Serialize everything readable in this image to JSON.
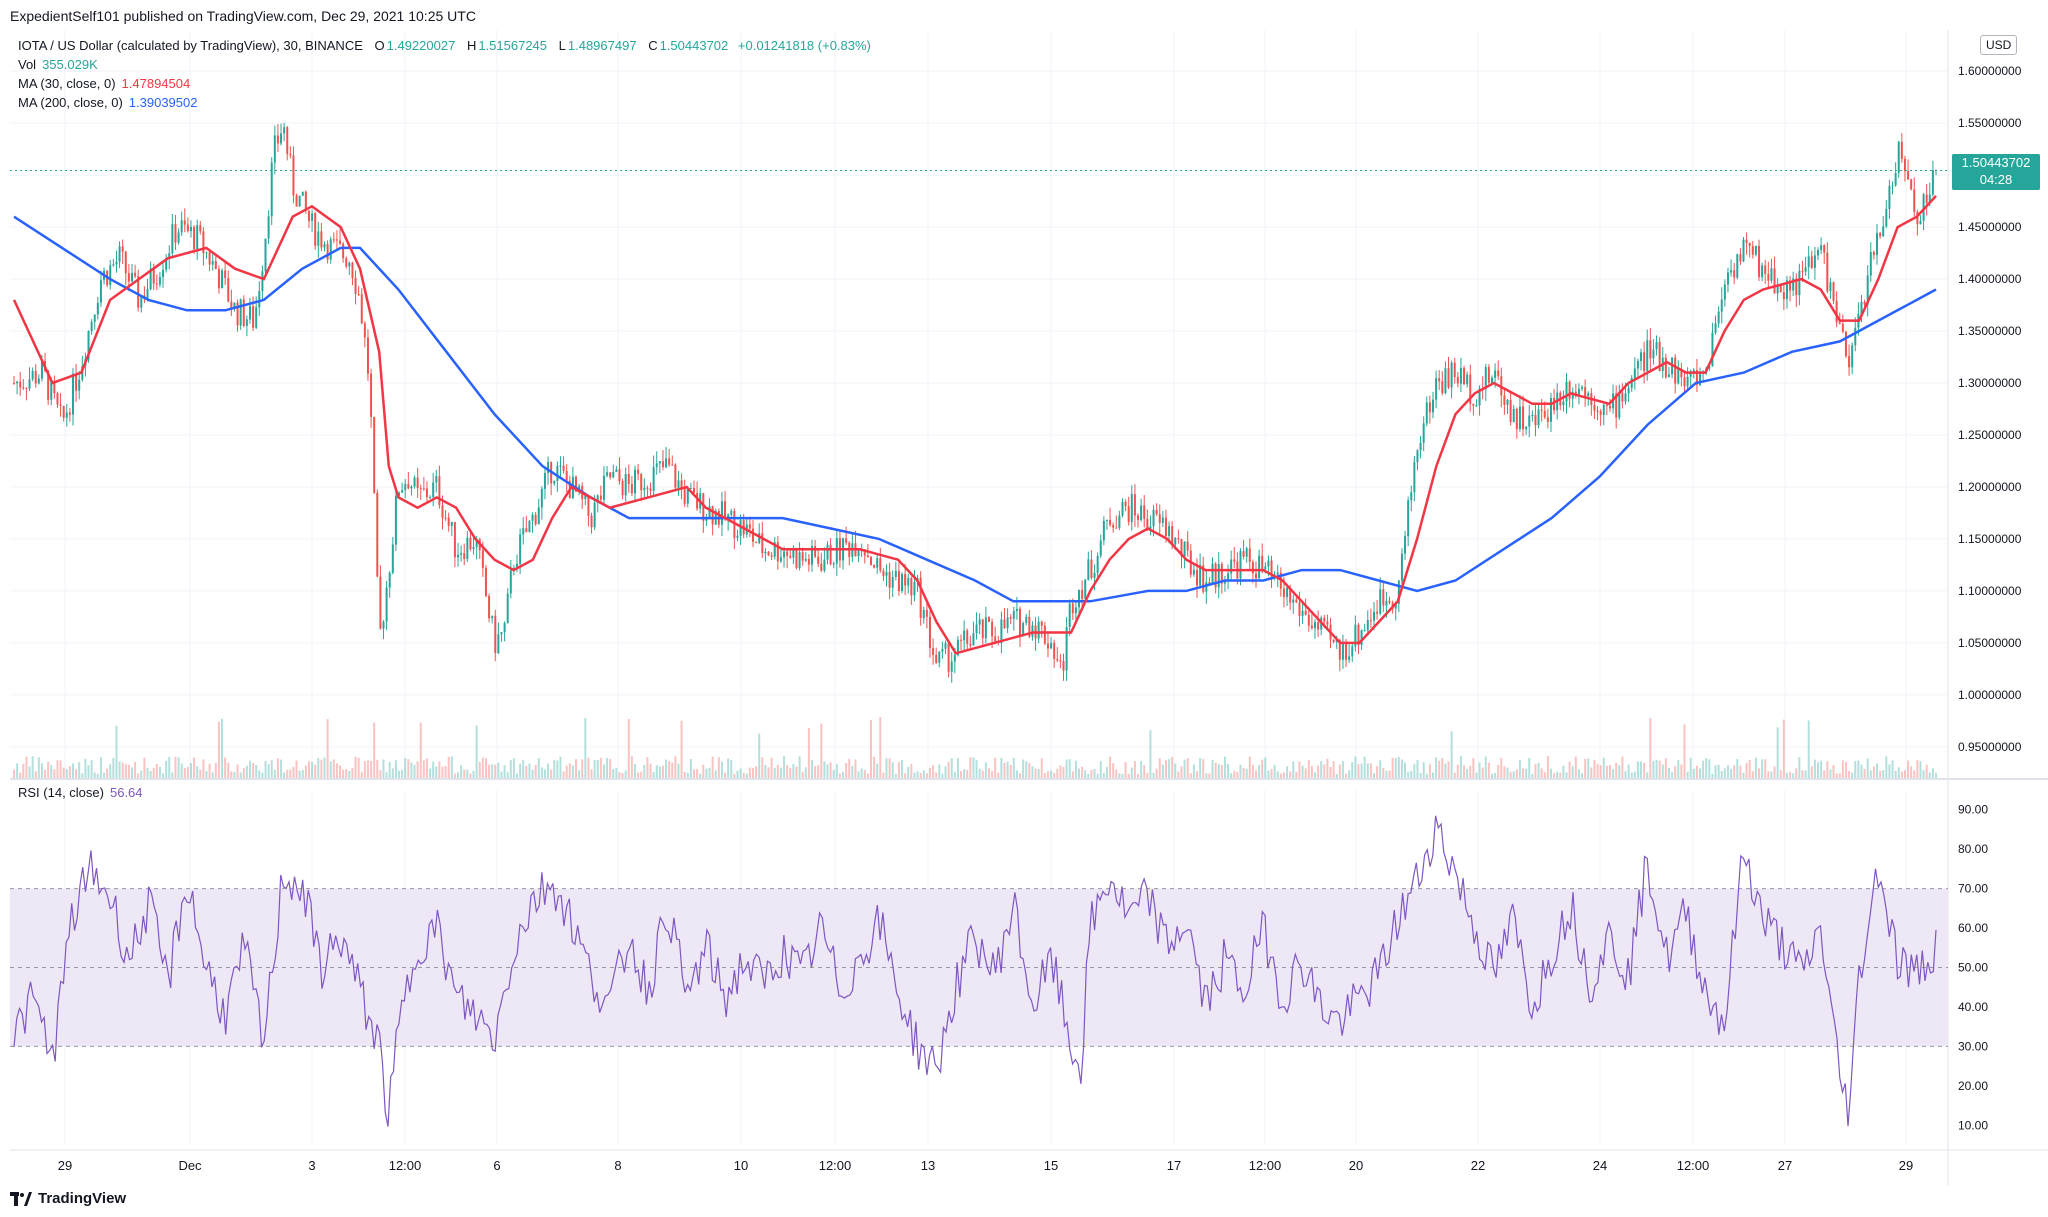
{
  "header": {
    "published_line": "ExpedientSelf101 published on TradingView.com, Dec 29, 2021 10:25 UTC"
  },
  "legend": {
    "title": "IOTA / US Dollar (calculated by TradingView), 30, BINANCE",
    "o_label": "O",
    "o_value": "1.49220027",
    "h_label": "H",
    "h_value": "1.51567245",
    "l_label": "L",
    "l_value": "1.48967497",
    "c_label": "C",
    "c_value": "1.50443702",
    "change": "+0.01241818 (+0.83%)",
    "vol_label": "Vol",
    "vol_value": "355.029K",
    "ma30_label": "MA (30, close, 0)",
    "ma30_value": "1.47894504",
    "ma200_label": "MA (200, close, 0)",
    "ma200_value": "1.39039502",
    "rsi_label": "RSI (14, close)",
    "rsi_value": "56.64"
  },
  "currency": "USD",
  "last_price": {
    "value": "1.50443702",
    "countdown": "04:28"
  },
  "branding": "TradingView",
  "colors": {
    "up": "#26a69a",
    "down": "#ef5350",
    "ma30": "#f23645",
    "ma200": "#2962ff",
    "rsi": "#7e57c2",
    "rsi_band": "#ede7f6",
    "grid": "#f0f3fa",
    "text": "#131722"
  },
  "chart_data": [
    {
      "type": "candlestick",
      "title": "IOTA / US Dollar",
      "ylim": [
        0.92,
        1.63
      ],
      "y_ticks": [
        "1.60000000",
        "1.55000000",
        "1.50000000",
        "1.45000000",
        "1.40000000",
        "1.35000000",
        "1.30000000",
        "1.25000000",
        "1.20000000",
        "1.15000000",
        "1.10000000",
        "1.05000000",
        "1.00000000",
        "0.95000000"
      ],
      "x_ticks": [
        "29",
        "Dec",
        "3",
        "12:00",
        "6",
        "8",
        "10",
        "12:00",
        "13",
        "15",
        "17",
        "12:00",
        "20",
        "22",
        "24",
        "12:00",
        "27",
        "29"
      ],
      "price_path": [
        [
          0,
          1.3
        ],
        [
          3,
          1.31
        ],
        [
          5,
          1.26
        ],
        [
          7,
          1.32
        ],
        [
          9,
          1.4
        ],
        [
          11,
          1.42
        ],
        [
          13,
          1.38
        ],
        [
          15,
          1.41
        ],
        [
          17,
          1.45
        ],
        [
          19,
          1.44
        ],
        [
          21,
          1.41
        ],
        [
          23,
          1.37
        ],
        [
          25,
          1.36
        ],
        [
          26,
          1.43
        ],
        [
          27,
          1.52
        ],
        [
          28,
          1.55
        ],
        [
          29,
          1.49
        ],
        [
          31,
          1.45
        ],
        [
          33,
          1.43
        ],
        [
          35,
          1.42
        ],
        [
          36,
          1.38
        ],
        [
          37,
          1.3
        ],
        [
          38,
          1.05
        ],
        [
          39,
          1.12
        ],
        [
          40,
          1.2
        ],
        [
          41,
          1.21
        ],
        [
          42,
          1.19
        ],
        [
          44,
          1.2
        ],
        [
          46,
          1.14
        ],
        [
          48,
          1.15
        ],
        [
          50,
          1.05
        ],
        [
          51,
          1.06
        ],
        [
          52,
          1.13
        ],
        [
          54,
          1.17
        ],
        [
          56,
          1.22
        ],
        [
          58,
          1.2
        ],
        [
          60,
          1.17
        ],
        [
          62,
          1.21
        ],
        [
          64,
          1.2
        ],
        [
          66,
          1.21
        ],
        [
          68,
          1.22
        ],
        [
          70,
          1.19
        ],
        [
          72,
          1.18
        ],
        [
          74,
          1.17
        ],
        [
          76,
          1.16
        ],
        [
          78,
          1.14
        ],
        [
          80,
          1.14
        ],
        [
          82,
          1.13
        ],
        [
          84,
          1.13
        ],
        [
          86,
          1.14
        ],
        [
          88,
          1.15
        ],
        [
          90,
          1.12
        ],
        [
          92,
          1.11
        ],
        [
          94,
          1.1
        ],
        [
          96,
          1.03
        ],
        [
          98,
          1.04
        ],
        [
          100,
          1.06
        ],
        [
          102,
          1.06
        ],
        [
          104,
          1.07
        ],
        [
          106,
          1.07
        ],
        [
          108,
          1.05
        ],
        [
          109,
          1.02
        ],
        [
          110,
          1.09
        ],
        [
          112,
          1.12
        ],
        [
          114,
          1.17
        ],
        [
          116,
          1.18
        ],
        [
          118,
          1.17
        ],
        [
          120,
          1.16
        ],
        [
          122,
          1.13
        ],
        [
          124,
          1.11
        ],
        [
          126,
          1.12
        ],
        [
          128,
          1.13
        ],
        [
          130,
          1.12
        ],
        [
          132,
          1.1
        ],
        [
          134,
          1.08
        ],
        [
          136,
          1.06
        ],
        [
          138,
          1.04
        ],
        [
          140,
          1.06
        ],
        [
          142,
          1.09
        ],
        [
          144,
          1.1
        ],
        [
          146,
          1.24
        ],
        [
          148,
          1.3
        ],
        [
          150,
          1.31
        ],
        [
          152,
          1.29
        ],
        [
          154,
          1.31
        ],
        [
          156,
          1.27
        ],
        [
          158,
          1.26
        ],
        [
          160,
          1.28
        ],
        [
          162,
          1.3
        ],
        [
          164,
          1.29
        ],
        [
          166,
          1.27
        ],
        [
          168,
          1.3
        ],
        [
          170,
          1.33
        ],
        [
          172,
          1.32
        ],
        [
          174,
          1.3
        ],
        [
          176,
          1.31
        ],
        [
          178,
          1.4
        ],
        [
          180,
          1.43
        ],
        [
          182,
          1.41
        ],
        [
          184,
          1.39
        ],
        [
          186,
          1.4
        ],
        [
          188,
          1.43
        ],
        [
          190,
          1.35
        ],
        [
          191,
          1.31
        ],
        [
          192,
          1.37
        ],
        [
          194,
          1.44
        ],
        [
          195,
          1.48
        ],
        [
          196,
          1.52
        ],
        [
          197,
          1.5
        ],
        [
          198,
          1.46
        ],
        [
          199,
          1.48
        ],
        [
          200,
          1.5
        ]
      ],
      "ma30_path": [
        [
          0,
          1.38
        ],
        [
          4,
          1.3
        ],
        [
          7,
          1.31
        ],
        [
          10,
          1.38
        ],
        [
          13,
          1.4
        ],
        [
          16,
          1.42
        ],
        [
          20,
          1.43
        ],
        [
          23,
          1.41
        ],
        [
          26,
          1.4
        ],
        [
          29,
          1.46
        ],
        [
          31,
          1.47
        ],
        [
          34,
          1.45
        ],
        [
          36,
          1.41
        ],
        [
          38,
          1.33
        ],
        [
          39,
          1.22
        ],
        [
          40,
          1.19
        ],
        [
          42,
          1.18
        ],
        [
          44,
          1.19
        ],
        [
          46,
          1.18
        ],
        [
          48,
          1.15
        ],
        [
          50,
          1.13
        ],
        [
          52,
          1.12
        ],
        [
          54,
          1.13
        ],
        [
          56,
          1.17
        ],
        [
          58,
          1.2
        ],
        [
          60,
          1.19
        ],
        [
          62,
          1.18
        ],
        [
          66,
          1.19
        ],
        [
          70,
          1.2
        ],
        [
          72,
          1.18
        ],
        [
          76,
          1.16
        ],
        [
          80,
          1.14
        ],
        [
          84,
          1.14
        ],
        [
          88,
          1.14
        ],
        [
          92,
          1.13
        ],
        [
          94,
          1.11
        ],
        [
          96,
          1.07
        ],
        [
          98,
          1.04
        ],
        [
          102,
          1.05
        ],
        [
          106,
          1.06
        ],
        [
          108,
          1.06
        ],
        [
          110,
          1.06
        ],
        [
          112,
          1.1
        ],
        [
          114,
          1.13
        ],
        [
          116,
          1.15
        ],
        [
          118,
          1.16
        ],
        [
          120,
          1.15
        ],
        [
          122,
          1.13
        ],
        [
          124,
          1.12
        ],
        [
          128,
          1.12
        ],
        [
          130,
          1.12
        ],
        [
          132,
          1.11
        ],
        [
          134,
          1.09
        ],
        [
          136,
          1.07
        ],
        [
          138,
          1.05
        ],
        [
          140,
          1.05
        ],
        [
          142,
          1.07
        ],
        [
          144,
          1.09
        ],
        [
          146,
          1.15
        ],
        [
          148,
          1.22
        ],
        [
          150,
          1.27
        ],
        [
          152,
          1.29
        ],
        [
          154,
          1.3
        ],
        [
          156,
          1.29
        ],
        [
          158,
          1.28
        ],
        [
          160,
          1.28
        ],
        [
          162,
          1.29
        ],
        [
          166,
          1.28
        ],
        [
          168,
          1.3
        ],
        [
          170,
          1.31
        ],
        [
          172,
          1.32
        ],
        [
          174,
          1.31
        ],
        [
          176,
          1.31
        ],
        [
          178,
          1.35
        ],
        [
          180,
          1.38
        ],
        [
          182,
          1.39
        ],
        [
          186,
          1.4
        ],
        [
          188,
          1.39
        ],
        [
          190,
          1.36
        ],
        [
          192,
          1.36
        ],
        [
          194,
          1.4
        ],
        [
          196,
          1.45
        ],
        [
          198,
          1.46
        ],
        [
          200,
          1.48
        ]
      ],
      "ma200_path": [
        [
          0,
          1.46
        ],
        [
          5,
          1.43
        ],
        [
          10,
          1.4
        ],
        [
          14,
          1.38
        ],
        [
          18,
          1.37
        ],
        [
          22,
          1.37
        ],
        [
          26,
          1.38
        ],
        [
          30,
          1.41
        ],
        [
          34,
          1.43
        ],
        [
          36,
          1.43
        ],
        [
          40,
          1.39
        ],
        [
          45,
          1.33
        ],
        [
          50,
          1.27
        ],
        [
          55,
          1.22
        ],
        [
          60,
          1.19
        ],
        [
          64,
          1.17
        ],
        [
          70,
          1.17
        ],
        [
          75,
          1.17
        ],
        [
          80,
          1.17
        ],
        [
          85,
          1.16
        ],
        [
          90,
          1.15
        ],
        [
          95,
          1.13
        ],
        [
          100,
          1.11
        ],
        [
          104,
          1.09
        ],
        [
          108,
          1.09
        ],
        [
          112,
          1.09
        ],
        [
          118,
          1.1
        ],
        [
          122,
          1.1
        ],
        [
          126,
          1.11
        ],
        [
          130,
          1.11
        ],
        [
          134,
          1.12
        ],
        [
          138,
          1.12
        ],
        [
          142,
          1.11
        ],
        [
          146,
          1.1
        ],
        [
          150,
          1.11
        ],
        [
          155,
          1.14
        ],
        [
          160,
          1.17
        ],
        [
          165,
          1.21
        ],
        [
          170,
          1.26
        ],
        [
          175,
          1.3
        ],
        [
          180,
          1.31
        ],
        [
          185,
          1.33
        ],
        [
          190,
          1.34
        ],
        [
          194,
          1.36
        ],
        [
          198,
          1.38
        ],
        [
          200,
          1.39
        ]
      ]
    },
    {
      "type": "line",
      "title": "RSI (14, close)",
      "ylim": [
        5,
        95
      ],
      "y_ticks": [
        "90.00",
        "80.00",
        "70.00",
        "60.00",
        "50.00",
        "40.00",
        "30.00",
        "20.00",
        "10.00"
      ],
      "band": [
        30,
        70
      ],
      "midline": 50,
      "rsi_path": [
        [
          0,
          33
        ],
        [
          2,
          42
        ],
        [
          4,
          27
        ],
        [
          6,
          62
        ],
        [
          8,
          75
        ],
        [
          10,
          68
        ],
        [
          12,
          52
        ],
        [
          14,
          66
        ],
        [
          16,
          46
        ],
        [
          18,
          72
        ],
        [
          20,
          50
        ],
        [
          22,
          38
        ],
        [
          24,
          55
        ],
        [
          26,
          30
        ],
        [
          28,
          74
        ],
        [
          30,
          70
        ],
        [
          32,
          50
        ],
        [
          34,
          58
        ],
        [
          36,
          44
        ],
        [
          38,
          30
        ],
        [
          39,
          12
        ],
        [
          40,
          34
        ],
        [
          42,
          56
        ],
        [
          44,
          60
        ],
        [
          46,
          42
        ],
        [
          48,
          38
        ],
        [
          50,
          32
        ],
        [
          52,
          55
        ],
        [
          54,
          67
        ],
        [
          56,
          72
        ],
        [
          58,
          62
        ],
        [
          60,
          48
        ],
        [
          62,
          40
        ],
        [
          64,
          58
        ],
        [
          66,
          44
        ],
        [
          68,
          66
        ],
        [
          70,
          42
        ],
        [
          72,
          55
        ],
        [
          74,
          42
        ],
        [
          76,
          52
        ],
        [
          78,
          46
        ],
        [
          80,
          54
        ],
        [
          82,
          48
        ],
        [
          84,
          60
        ],
        [
          86,
          44
        ],
        [
          88,
          52
        ],
        [
          90,
          62
        ],
        [
          92,
          44
        ],
        [
          94,
          30
        ],
        [
          96,
          24
        ],
        [
          98,
          45
        ],
        [
          100,
          58
        ],
        [
          102,
          48
        ],
        [
          104,
          66
        ],
        [
          106,
          40
        ],
        [
          108,
          52
        ],
        [
          110,
          30
        ],
        [
          111,
          24
        ],
        [
          112,
          60
        ],
        [
          114,
          73
        ],
        [
          116,
          62
        ],
        [
          118,
          68
        ],
        [
          120,
          55
        ],
        [
          122,
          62
        ],
        [
          124,
          40
        ],
        [
          126,
          52
        ],
        [
          128,
          44
        ],
        [
          130,
          60
        ],
        [
          132,
          42
        ],
        [
          134,
          52
        ],
        [
          136,
          40
        ],
        [
          138,
          36
        ],
        [
          140,
          42
        ],
        [
          142,
          48
        ],
        [
          144,
          62
        ],
        [
          146,
          72
        ],
        [
          148,
          86
        ],
        [
          150,
          74
        ],
        [
          152,
          60
        ],
        [
          154,
          48
        ],
        [
          156,
          62
        ],
        [
          158,
          40
        ],
        [
          160,
          54
        ],
        [
          162,
          66
        ],
        [
          164,
          46
        ],
        [
          166,
          58
        ],
        [
          168,
          48
        ],
        [
          170,
          77
        ],
        [
          172,
          52
        ],
        [
          174,
          64
        ],
        [
          176,
          44
        ],
        [
          178,
          36
        ],
        [
          180,
          80
        ],
        [
          182,
          62
        ],
        [
          184,
          56
        ],
        [
          186,
          48
        ],
        [
          188,
          60
        ],
        [
          190,
          22
        ],
        [
          191,
          14
        ],
        [
          192,
          48
        ],
        [
          194,
          76
        ],
        [
          196,
          52
        ],
        [
          198,
          48
        ],
        [
          200,
          56
        ]
      ]
    },
    {
      "type": "bar",
      "title": "Vol",
      "note": "volume histogram, colored by candle direction"
    }
  ]
}
